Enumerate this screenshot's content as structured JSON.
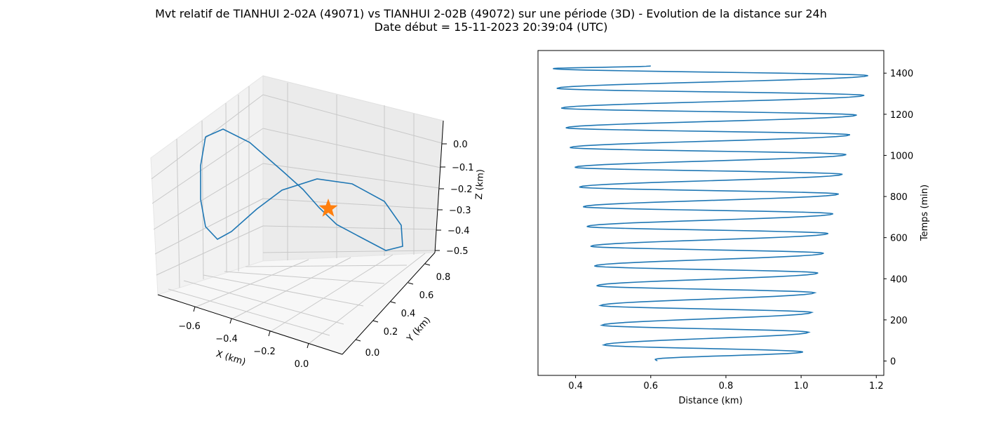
{
  "figure": {
    "title_line1": "Mvt relatif de TIANHUI 2-02A (49071) vs TIANHUI 2-02B (49072) sur une période (3D) - Evolution de la distance sur 24h",
    "title_line2": "Date début = 15-11-2023 20:39:04 (UTC)"
  },
  "chart_data": [
    {
      "type": "line3d",
      "xlabel": "X (km)",
      "ylabel": "Y (km)",
      "zlabel": "Z (km)",
      "x_ticks": [
        "−0.6",
        "−0.4",
        "−0.2",
        "0.0"
      ],
      "y_ticks": [
        "0.0",
        "0.2",
        "0.4",
        "0.6",
        "0.8"
      ],
      "z_ticks": [
        "0.0",
        "−0.1",
        "−0.2",
        "−0.3",
        "−0.4",
        "−0.5"
      ],
      "grid": true,
      "series_color": "#1f77b4",
      "marker_color": "#ff7f0e",
      "marker": "star",
      "marker_point": [
        0.0,
        0.0,
        0.0
      ]
    },
    {
      "type": "line",
      "xlabel": "Distance (km)",
      "ylabel": "Temps (min)",
      "xlim": [
        0.3,
        1.22
      ],
      "ylim": [
        -70,
        1510
      ],
      "x_ticks": [
        0.4,
        0.6,
        0.8,
        1.0,
        1.2
      ],
      "y_ticks": [
        0,
        200,
        400,
        600,
        800,
        1000,
        1200,
        1400
      ],
      "yaxis_side": "right",
      "series_color": "#1f77b4",
      "series": [
        {
          "peaks": [
            [
              44,
              1.005
            ],
            [
              140,
              1.02
            ],
            [
              236,
              1.028
            ],
            [
              332,
              1.036
            ],
            [
              428,
              1.045
            ],
            [
              524,
              1.06
            ],
            [
              620,
              1.072
            ],
            [
              716,
              1.085
            ],
            [
              812,
              1.1
            ],
            [
              908,
              1.11
            ],
            [
              1004,
              1.12
            ],
            [
              1100,
              1.13
            ],
            [
              1196,
              1.148
            ],
            [
              1292,
              1.168
            ],
            [
              1388,
              1.178
            ]
          ],
          "troughs": [
            [
              8,
              0.612
            ],
            [
              78,
              0.475
            ],
            [
              174,
              0.47
            ],
            [
              270,
              0.466
            ],
            [
              366,
              0.456
            ],
            [
              462,
              0.45
            ],
            [
              558,
              0.44
            ],
            [
              654,
              0.43
            ],
            [
              750,
              0.42
            ],
            [
              846,
              0.41
            ],
            [
              942,
              0.398
            ],
            [
              1038,
              0.385
            ],
            [
              1134,
              0.374
            ],
            [
              1230,
              0.362
            ],
            [
              1326,
              0.35
            ],
            [
              1422,
              0.34
            ]
          ],
          "start": [
            0,
            0.617
          ],
          "end": [
            1435,
            0.6
          ]
        }
      ]
    }
  ]
}
